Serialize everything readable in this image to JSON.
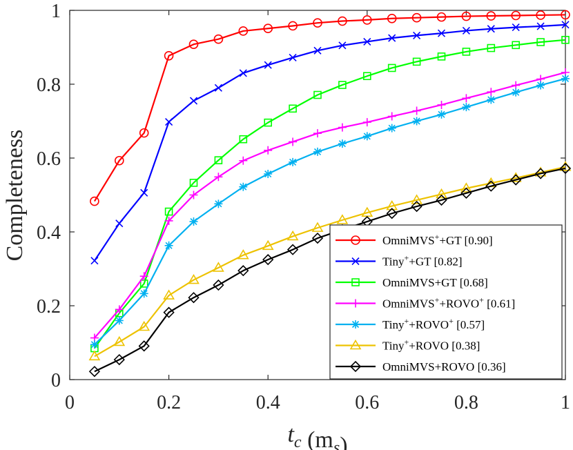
{
  "chart_data": {
    "type": "line",
    "title": "",
    "xlabel": "t_c (m_s)",
    "ylabel": "Completeness",
    "xlim": [
      0,
      1
    ],
    "ylim": [
      0,
      1
    ],
    "xticks": [
      0,
      0.2,
      0.4,
      0.6,
      0.8,
      1
    ],
    "yticks": [
      0,
      0.2,
      0.4,
      0.6,
      0.8,
      1
    ],
    "xtick_labels": [
      "0",
      "0.2",
      "0.4",
      "0.6",
      "0.8",
      "1"
    ],
    "ytick_labels": [
      "0",
      "0.2",
      "0.4",
      "0.6",
      "0.8",
      "1"
    ],
    "grid": false,
    "legend_position": "bottom-right",
    "x": [
      0.05,
      0.1,
      0.15,
      0.2,
      0.25,
      0.3,
      0.35,
      0.4,
      0.45,
      0.5,
      0.55,
      0.6,
      0.65,
      0.7,
      0.75,
      0.8,
      0.85,
      0.9,
      0.95,
      1.0
    ],
    "series": [
      {
        "name": "OmniMVS⁺+GT [0.90]",
        "legend": {
          "pre": "OmniMVS",
          "sup1": "+",
          "mid": "+GT [0.90]",
          "sup2": "",
          "post": ""
        },
        "color": "#ff0000",
        "marker": "circle",
        "values": [
          0.483,
          0.593,
          0.668,
          0.877,
          0.908,
          0.922,
          0.944,
          0.951,
          0.958,
          0.966,
          0.971,
          0.974,
          0.978,
          0.98,
          0.982,
          0.984,
          0.985,
          0.986,
          0.987,
          0.988
        ]
      },
      {
        "name": "Tiny⁺+GT [0.82]",
        "legend": {
          "pre": "Tiny",
          "sup1": "+",
          "mid": "+GT [0.82]",
          "sup2": "",
          "post": ""
        },
        "color": "#0000ff",
        "marker": "x",
        "values": [
          0.322,
          0.423,
          0.506,
          0.698,
          0.755,
          0.79,
          0.83,
          0.852,
          0.872,
          0.891,
          0.905,
          0.915,
          0.925,
          0.932,
          0.938,
          0.945,
          0.95,
          0.954,
          0.957,
          0.961
        ]
      },
      {
        "name": "OmniMVS+GT [0.68]",
        "legend": {
          "pre": "OmniMVS+GT [0.68]",
          "sup1": "",
          "mid": "",
          "sup2": "",
          "post": ""
        },
        "color": "#00ff00",
        "marker": "square",
        "values": [
          0.085,
          0.18,
          0.26,
          0.455,
          0.533,
          0.594,
          0.651,
          0.696,
          0.734,
          0.771,
          0.798,
          0.822,
          0.844,
          0.861,
          0.875,
          0.888,
          0.898,
          0.906,
          0.914,
          0.92
        ]
      },
      {
        "name": "OmniMVS⁺+ROVO⁺ [0.61]",
        "legend": {
          "pre": "OmniMVS",
          "sup1": "+",
          "mid": "+ROVO",
          "sup2": "+",
          "post": " [0.61]"
        },
        "color": "#ff00ff",
        "marker": "plus",
        "values": [
          0.113,
          0.19,
          0.28,
          0.43,
          0.5,
          0.549,
          0.593,
          0.621,
          0.644,
          0.667,
          0.683,
          0.697,
          0.713,
          0.728,
          0.744,
          0.762,
          0.779,
          0.797,
          0.814,
          0.832
        ]
      },
      {
        "name": "Tiny⁺+ROVO⁺ [0.57]",
        "legend": {
          "pre": "Tiny",
          "sup1": "+",
          "mid": "+ROVO",
          "sup2": "+",
          "post": " [0.57]"
        },
        "color": "#00b0f0",
        "marker": "asterisk",
        "values": [
          0.095,
          0.16,
          0.233,
          0.363,
          0.428,
          0.476,
          0.522,
          0.557,
          0.589,
          0.617,
          0.639,
          0.659,
          0.681,
          0.7,
          0.718,
          0.738,
          0.758,
          0.778,
          0.797,
          0.815
        ]
      },
      {
        "name": "Tiny⁺+ROVO [0.38]",
        "legend": {
          "pre": "Tiny",
          "sup1": "+",
          "mid": "+ROVO [0.38]",
          "sup2": "",
          "post": ""
        },
        "color": "#edc200",
        "marker": "triangle",
        "values": [
          0.063,
          0.102,
          0.143,
          0.228,
          0.27,
          0.303,
          0.337,
          0.362,
          0.388,
          0.411,
          0.432,
          0.452,
          0.47,
          0.486,
          0.502,
          0.518,
          0.532,
          0.546,
          0.561,
          0.576
        ]
      },
      {
        "name": "OmniMVS+ROVO [0.36]",
        "legend": {
          "pre": "OmniMVS+ROVO [0.36]",
          "sup1": "",
          "mid": "",
          "sup2": "",
          "post": ""
        },
        "color": "#000000",
        "marker": "diamond",
        "values": [
          0.022,
          0.054,
          0.091,
          0.182,
          0.222,
          0.256,
          0.295,
          0.325,
          0.352,
          0.383,
          0.406,
          0.428,
          0.45,
          0.469,
          0.486,
          0.505,
          0.524,
          0.541,
          0.558,
          0.572
        ]
      }
    ]
  }
}
